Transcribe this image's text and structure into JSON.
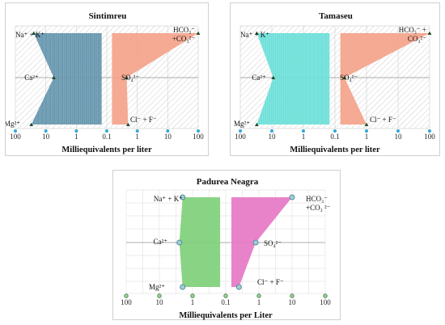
{
  "chart_data": [
    {
      "type": "area",
      "title": "Sintimreu",
      "xlabel": "Milliequivalents per liter",
      "x_scale": "log-mirrored",
      "x_tick_labels": [
        "100",
        "10",
        "1",
        "0.1",
        "1",
        "10",
        "100"
      ],
      "rows": [
        "Na⁺ + K⁺",
        "Ca²⁺ | SO₄²⁻",
        "Mg²⁺ | Cl⁻ + F⁻"
      ],
      "cation_labels": [
        "Na⁺ + K⁺",
        "Ca²⁺",
        "Mg²⁺"
      ],
      "anion_labels": [
        "HCO₃⁻\n+CO₃²⁻",
        "SO₄²⁻",
        "Cl⁻ + F⁻"
      ],
      "cations": [
        {
          "ion": "Na⁺ + K⁺",
          "value": 25
        },
        {
          "ion": "Ca²⁺",
          "value": 5.5
        },
        {
          "ion": "Mg²⁺",
          "value": 30
        }
      ],
      "anions": [
        {
          "ion": "HCO₃⁻ +CO₃²⁻",
          "value": 100
        },
        {
          "ion": "SO₄²⁻",
          "value": 0.45
        },
        {
          "ion": "Cl⁻ + F⁻",
          "value": 0.5
        }
      ],
      "colors": {
        "cation": "#5b8fa8",
        "anion": "#f4a38b"
      },
      "grid": true,
      "hatched_background": true
    },
    {
      "type": "area",
      "title": "Tamaseu",
      "xlabel": "Milliequivalents per liter",
      "x_scale": "log-mirrored",
      "x_tick_labels": [
        "100",
        "10",
        "1",
        "0.1",
        "1",
        "10",
        "100"
      ],
      "rows": [
        "Na⁺ + K⁺",
        "Ca²⁺ | SO₄²⁻",
        "Mg²⁺ | Cl⁻ + F⁻"
      ],
      "cation_labels": [
        "Na⁺ + K⁺",
        "Ca²⁺",
        "Mg²⁺"
      ],
      "anion_labels": [
        "HCO₃⁻ +\nCO₃²⁻",
        "SO₄²⁻",
        "Cl⁻ + F⁻"
      ],
      "cations": [
        {
          "ion": "Na⁺ + K⁺",
          "value": 30
        },
        {
          "ion": "Ca²⁺",
          "value": 9
        },
        {
          "ion": "Mg²⁺",
          "value": 30
        }
      ],
      "anions": [
        {
          "ion": "HCO₃⁻ + CO₃²⁻",
          "value": 100
        },
        {
          "ion": "SO₄²⁻",
          "value": 0.2
        },
        {
          "ion": "Cl⁻ + F⁻",
          "value": 1
        }
      ],
      "colors": {
        "cation": "#62ddd6",
        "anion": "#f4a38b"
      },
      "grid": true,
      "hatched_background": true
    },
    {
      "type": "area",
      "title": "Padurea Neagra",
      "xlabel": "Milliequivalents per Liter",
      "x_scale": "log-mirrored",
      "x_tick_labels": [
        "100",
        "10",
        "1",
        "0.1",
        "1",
        "10",
        "100"
      ],
      "rows": [
        "Na⁺ + K⁺",
        "Ca²⁺ | SO₄²⁻",
        "Mg²⁺ | Cl⁻ + F⁻"
      ],
      "cation_labels": [
        "Na⁺ + K⁺",
        "Ca²⁺",
        "Mg²⁺"
      ],
      "anion_labels": [
        "HCO₃⁻\n+CO₃ ²⁻",
        "SO₄²⁻",
        "Cl⁻ + F⁻"
      ],
      "cations": [
        {
          "ion": "Na⁺ + K⁺",
          "value": 2
        },
        {
          "ion": "Ca²⁺",
          "value": 2.5
        },
        {
          "ion": "Mg²⁺",
          "value": 2
        }
      ],
      "anions": [
        {
          "ion": "HCO₃⁻ +CO₃²⁻",
          "value": 10
        },
        {
          "ion": "SO₄²⁻",
          "value": 0.8
        },
        {
          "ion": "Cl⁻ + F⁻",
          "value": 0.25
        }
      ],
      "colors": {
        "cation": "#7fd07a",
        "anion": "#e678c6"
      },
      "grid": true,
      "hatched_background": false
    }
  ]
}
